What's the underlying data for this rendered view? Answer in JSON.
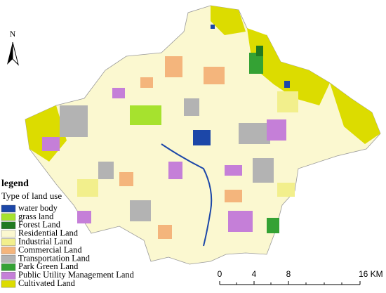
{
  "north_arrow": {
    "label": "N"
  },
  "legend": {
    "title": "legend",
    "subtitle": "Type of land use",
    "items": [
      {
        "label": "water body",
        "color": "#1c47a8"
      },
      {
        "label": "grass land",
        "color": "#a6e22e"
      },
      {
        "label": "Forest Land",
        "color": "#217a21"
      },
      {
        "label": "Residential Land",
        "color": "#fbf8d0"
      },
      {
        "label": "Industrial Land",
        "color": "#f2ef8c"
      },
      {
        "label": "Commercial Land",
        "color": "#f4b57c"
      },
      {
        "label": "Transportation Land",
        "color": "#b3b3b3"
      },
      {
        "label": "Park Green Land",
        "color": "#34a234"
      },
      {
        "label": "Public Utility Management Land",
        "color": "#c57fd8"
      },
      {
        "label": "Cultivated Land",
        "color": "#dcdc00"
      }
    ]
  },
  "scale_bar": {
    "labels": [
      "0",
      "4",
      "8",
      "16 KM"
    ]
  }
}
